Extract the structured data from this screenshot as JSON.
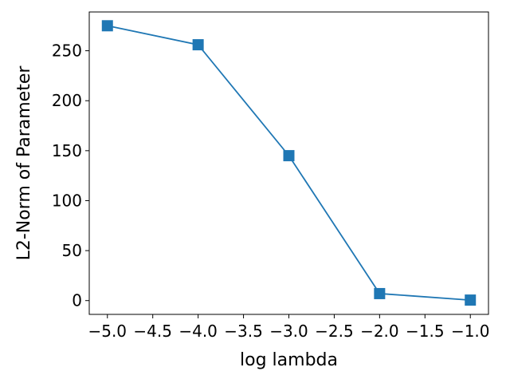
{
  "chart_data": {
    "type": "line",
    "xlabel": "log lambda",
    "ylabel": "L2-Norm of Parameter",
    "xlim": [
      -5.2,
      -0.8
    ],
    "ylim": [
      -13.8,
      288.8
    ],
    "xticks": [
      -5.0,
      -4.5,
      -4.0,
      -3.5,
      -3.0,
      -2.5,
      -2.0,
      -1.5,
      -1.0
    ],
    "xtick_labels": [
      "−5.0",
      "−4.5",
      "−4.0",
      "−3.5",
      "−3.0",
      "−2.5",
      "−2.0",
      "−1.5",
      "−1.0"
    ],
    "yticks": [
      0,
      50,
      100,
      150,
      200,
      250
    ],
    "ytick_labels": [
      "0",
      "50",
      "100",
      "150",
      "200",
      "250"
    ],
    "grid": false,
    "series": [
      {
        "x": [
          -5,
          -4,
          -3,
          -2,
          -1
        ],
        "y": [
          275,
          256,
          145,
          7,
          0.5
        ],
        "color": "#1f77b4",
        "marker": "square"
      }
    ]
  }
}
